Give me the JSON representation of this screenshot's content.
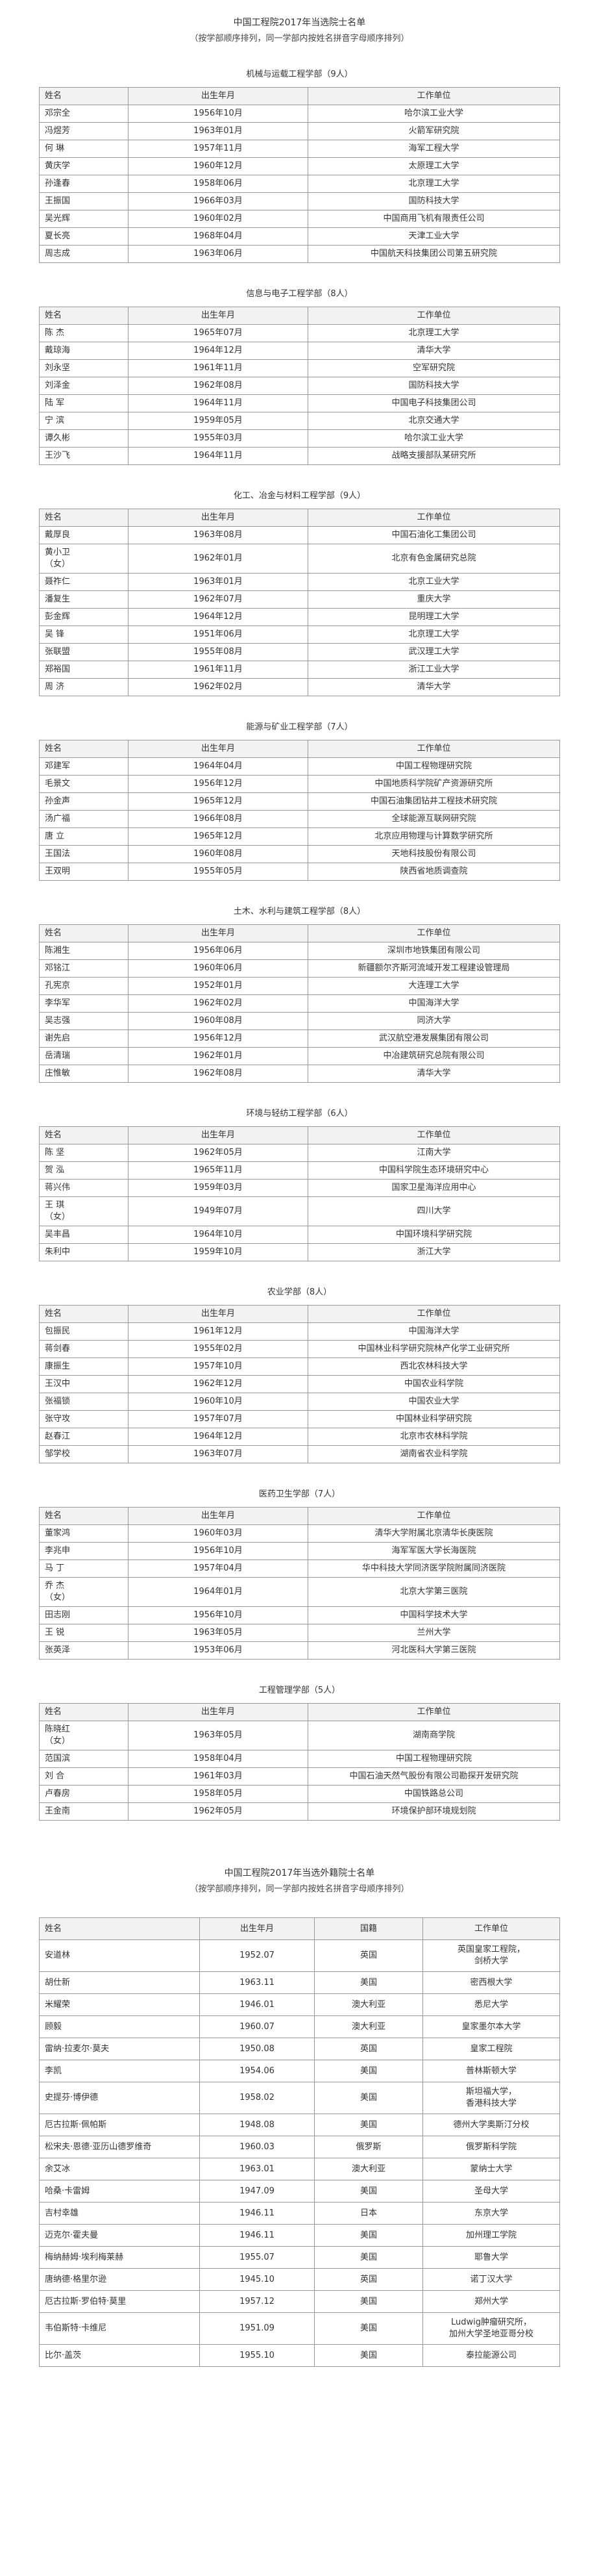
{
  "header": {
    "title": "中国工程院2017年当选院士名单",
    "subtitle": "（按学部顺序排列，同一学部内按姓名拼音字母顺序排列）"
  },
  "sections": [
    {
      "title": "机械与运载工程学部（9人）",
      "columns": [
        "姓名",
        "出生年月",
        "工作单位"
      ],
      "rows": [
        [
          "邓宗全",
          "1956年10月",
          "哈尔滨工业大学"
        ],
        [
          "冯煜芳",
          "1963年01月",
          "火箭军研究院"
        ],
        [
          "何 琳",
          "1957年11月",
          "海军工程大学"
        ],
        [
          "黄庆学",
          "1960年12月",
          "太原理工大学"
        ],
        [
          "孙逢春",
          "1958年06月",
          "北京理工大学"
        ],
        [
          "王振国",
          "1966年03月",
          "国防科技大学"
        ],
        [
          "吴光辉",
          "1960年02月",
          "中国商用飞机有限责任公司"
        ],
        [
          "夏长亮",
          "1968年04月",
          "天津工业大学"
        ],
        [
          "周志成",
          "1963年06月",
          "中国航天科技集团公司第五研究院"
        ]
      ]
    },
    {
      "title": "信息与电子工程学部（8人）",
      "columns": [
        "姓名",
        "出生年月",
        "工作单位"
      ],
      "rows": [
        [
          "陈 杰",
          "1965年07月",
          "北京理工大学"
        ],
        [
          "戴琼海",
          "1964年12月",
          "清华大学"
        ],
        [
          "刘永坚",
          "1961年11月",
          "空军研究院"
        ],
        [
          "刘泽金",
          "1962年08月",
          "国防科技大学"
        ],
        [
          "陆 军",
          "1964年11月",
          "中国电子科技集团公司"
        ],
        [
          "宁 滨",
          "1959年05月",
          "北京交通大学"
        ],
        [
          "谭久彬",
          "1955年03月",
          "哈尔滨工业大学"
        ],
        [
          "王沙飞",
          "1964年11月",
          "战略支援部队某研究所"
        ]
      ]
    },
    {
      "title": "化工、冶金与材料工程学部（9人）",
      "columns": [
        "姓名",
        "出生年月",
        "工作单位"
      ],
      "rows": [
        [
          "戴厚良",
          "1963年08月",
          "中国石油化工集团公司"
        ],
        [
          "黄小卫\n（女）",
          "1962年01月",
          "北京有色金属研究总院"
        ],
        [
          "聂祚仁",
          "1963年01月",
          "北京工业大学"
        ],
        [
          "潘复生",
          "1962年07月",
          "重庆大学"
        ],
        [
          "彭金辉",
          "1964年12月",
          "昆明理工大学"
        ],
        [
          "吴 锋",
          "1951年06月",
          "北京理工大学"
        ],
        [
          "张联盟",
          "1955年08月",
          "武汉理工大学"
        ],
        [
          "郑裕国",
          "1961年11月",
          "浙江工业大学"
        ],
        [
          "周 济",
          "1962年02月",
          "清华大学"
        ]
      ]
    },
    {
      "title": "能源与矿业工程学部（7人）",
      "columns": [
        "姓名",
        "出生年月",
        "工作单位"
      ],
      "rows": [
        [
          "邓建军",
          "1964年04月",
          "中国工程物理研究院"
        ],
        [
          "毛景文",
          "1956年12月",
          "中国地质科学院矿产资源研究所"
        ],
        [
          "孙金声",
          "1965年12月",
          "中国石油集团钻井工程技术研究院"
        ],
        [
          "汤广福",
          "1966年08月",
          "全球能源互联网研究院"
        ],
        [
          "唐 立",
          "1965年12月",
          "北京应用物理与计算数学研究所"
        ],
        [
          "王国法",
          "1960年08月",
          "天地科技股份有限公司"
        ],
        [
          "王双明",
          "1955年05月",
          "陕西省地质调查院"
        ]
      ]
    },
    {
      "title": "土木、水利与建筑工程学部（8人）",
      "columns": [
        "姓名",
        "出生年月",
        "工作单位"
      ],
      "rows": [
        [
          "陈湘生",
          "1956年06月",
          "深圳市地铁集团有限公司"
        ],
        [
          "邓铭江",
          "1960年06月",
          "新疆额尔齐斯河流域开发工程建设管理局"
        ],
        [
          "孔宪京",
          "1952年01月",
          "大连理工大学"
        ],
        [
          "李华军",
          "1962年02月",
          "中国海洋大学"
        ],
        [
          "吴志强",
          "1960年08月",
          "同济大学"
        ],
        [
          "谢先启",
          "1956年12月",
          "武汉航空港发展集团有限公司"
        ],
        [
          "岳清瑞",
          "1962年01月",
          "中冶建筑研究总院有限公司"
        ],
        [
          "庄惟敏",
          "1962年08月",
          "清华大学"
        ]
      ]
    },
    {
      "title": "环境与轻纺工程学部（6人）",
      "columns": [
        "姓名",
        "出生年月",
        "工作单位"
      ],
      "rows": [
        [
          "陈 坚",
          "1962年05月",
          "江南大学"
        ],
        [
          "贺 泓",
          "1965年11月",
          "中国科学院生态环境研究中心"
        ],
        [
          "蒋兴伟",
          "1959年03月",
          "国家卫星海洋应用中心"
        ],
        [
          "王 琪\n（女）",
          "1949年07月",
          "四川大学"
        ],
        [
          "吴丰昌",
          "1964年10月",
          "中国环境科学研究院"
        ],
        [
          "朱利中",
          "1959年10月",
          "浙江大学"
        ]
      ]
    },
    {
      "title": "农业学部（8人）",
      "columns": [
        "姓名",
        "出生年月",
        "工作单位"
      ],
      "rows": [
        [
          "包振民",
          "1961年12月",
          "中国海洋大学"
        ],
        [
          "蒋剑春",
          "1955年02月",
          "中国林业科学研究院林产化学工业研究所"
        ],
        [
          "康振生",
          "1957年10月",
          "西北农林科技大学"
        ],
        [
          "王汉中",
          "1962年12月",
          "中国农业科学院"
        ],
        [
          "张福锁",
          "1960年10月",
          "中国农业大学"
        ],
        [
          "张守攻",
          "1957年07月",
          "中国林业科学研究院"
        ],
        [
          "赵春江",
          "1964年12月",
          "北京市农林科学院"
        ],
        [
          "邹学校",
          "1963年07月",
          "湖南省农业科学院"
        ]
      ]
    },
    {
      "title": "医药卫生学部（7人）",
      "columns": [
        "姓名",
        "出生年月",
        "工作单位"
      ],
      "rows": [
        [
          "董家鸿",
          "1960年03月",
          "清华大学附属北京清华长庚医院"
        ],
        [
          "李兆申",
          "1956年10月",
          "海军军医大学长海医院"
        ],
        [
          "马 丁",
          "1957年04月",
          "华中科技大学同济医学院附属同济医院"
        ],
        [
          "乔 杰\n（女）",
          "1964年01月",
          "北京大学第三医院"
        ],
        [
          "田志刚",
          "1956年10月",
          "中国科学技术大学"
        ],
        [
          "王 锐",
          "1963年05月",
          "兰州大学"
        ],
        [
          "张英泽",
          "1953年06月",
          "河北医科大学第三医院"
        ]
      ]
    },
    {
      "title": "工程管理学部（5人）",
      "columns": [
        "姓名",
        "出生年月",
        "工作单位"
      ],
      "rows": [
        [
          "陈晓红\n（女）",
          "1963年05月",
          "湖南商学院"
        ],
        [
          "范国滨",
          "1958年04月",
          "中国工程物理研究院"
        ],
        [
          "刘 合",
          "1961年03月",
          "中国石油天然气股份有限公司勘探开发研究院"
        ],
        [
          "卢春房",
          "1958年05月",
          "中国铁路总公司"
        ],
        [
          "王金南",
          "1962年05月",
          "环境保护部环境规划院"
        ]
      ]
    }
  ],
  "foreign": {
    "title": "中国工程院2017年当选外籍院士名单",
    "subtitle": "（按学部顺序排列，同一学部内按姓名拼音字母顺序排列）",
    "columns": [
      "姓名",
      "出生年月",
      "国籍",
      "工作单位"
    ],
    "rows": [
      [
        "安道林",
        "1952.07",
        "英国",
        "英国皇家工程院，\n剑桥大学"
      ],
      [
        "胡仕新",
        "1963.11",
        "美国",
        "密西根大学"
      ],
      [
        "米耀荣",
        "1946.01",
        "澳大利亚",
        "悉尼大学"
      ],
      [
        "顾毅",
        "1960.07",
        "澳大利亚",
        "皇家墨尔本大学"
      ],
      [
        "雷纳·拉麦尔·莫夫",
        "1950.08",
        "英国",
        "皇家工程院"
      ],
      [
        "李凯",
        "1954.06",
        "美国",
        "普林斯顿大学"
      ],
      [
        "史提芬·博伊德",
        "1958.02",
        "美国",
        "斯坦福大学，\n香港科技大学"
      ],
      [
        "厄古拉斯·佩帕斯",
        "1948.08",
        "美国",
        "德州大学奥斯汀分校"
      ],
      [
        "松宋夫·恩德·亚历山德罗维奇",
        "1960.03",
        "俄罗斯",
        "俄罗斯科学院"
      ],
      [
        "余艾冰",
        "1963.01",
        "澳大利亚",
        "蒙纳士大学"
      ],
      [
        "哈桑·卡雷姆",
        "1947.09",
        "美国",
        "圣母大学"
      ],
      [
        "吉村幸雄",
        "1946.11",
        "日本",
        "东京大学"
      ],
      [
        "迈克尔·霍夫曼",
        "1946.11",
        "美国",
        "加州理工学院"
      ],
      [
        "梅纳赫姆·埃利梅莱赫",
        "1955.07",
        "美国",
        "耶鲁大学"
      ],
      [
        "唐纳德·格里尔逊",
        "1945.10",
        "英国",
        "诺丁汉大学"
      ],
      [
        "厄古拉斯·罗伯特·莫里",
        "1957.12",
        "美国",
        "郑州大学"
      ],
      [
        "韦伯斯特·卡维尼",
        "1951.09",
        "美国",
        "Ludwig肿瘤研究所，\n加州大学圣地亚哥分校"
      ],
      [
        "比尔·盖茨",
        "1955.10",
        "美国",
        "泰拉能源公司"
      ]
    ]
  }
}
